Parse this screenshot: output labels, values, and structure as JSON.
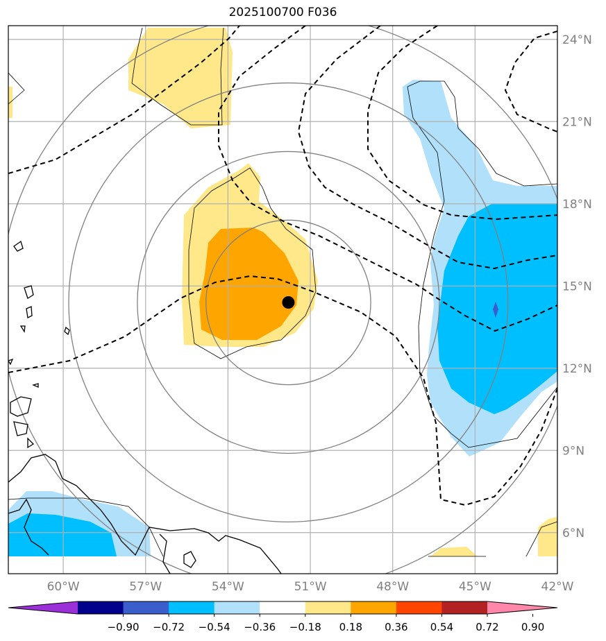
{
  "title": "2025100700 F036",
  "map": {
    "lon_range": [
      -62,
      -42
    ],
    "lat_range": [
      4.5,
      24.5
    ],
    "lon_ticks": [
      {
        "value": -60,
        "label": "60°W"
      },
      {
        "value": -57,
        "label": "57°W"
      },
      {
        "value": -54,
        "label": "54°W"
      },
      {
        "value": -51,
        "label": "51°W"
      },
      {
        "value": -48,
        "label": "48°W"
      },
      {
        "value": -45,
        "label": "45°W"
      },
      {
        "value": -42,
        "label": "42°W"
      }
    ],
    "lat_ticks": [
      {
        "value": 24,
        "label": "24°N"
      },
      {
        "value": 21,
        "label": "21°N"
      },
      {
        "value": 18,
        "label": "18°N"
      },
      {
        "value": 15,
        "label": "15°N"
      },
      {
        "value": 12,
        "label": "12°N"
      },
      {
        "value": 9,
        "label": "9°N"
      },
      {
        "value": 6,
        "label": "6°N"
      }
    ],
    "storm_center": {
      "lon": -51.8,
      "lat": 14.4
    },
    "range_rings_deg": [
      3,
      5.5,
      8,
      10.5
    ]
  },
  "colorbar": {
    "colors": [
      "#9b30d8",
      "#00008b",
      "#3a5fcd",
      "#00bfff",
      "#b0e0fa",
      "#ffffff",
      "#ffe88a",
      "#ffa500",
      "#ff4500",
      "#b22222",
      "#ff88aa"
    ],
    "labels": [
      "−0.90",
      "−0.72",
      "−0.54",
      "−0.36",
      "−0.18",
      "0.18",
      "0.36",
      "0.54",
      "0.72",
      "0.90"
    ]
  },
  "colors": {
    "light_yellow": "#ffe88a",
    "orange": "#ffa500",
    "light_blue": "#b0e0fa",
    "deep_sky_blue": "#00bfff",
    "blue": "#3a5fcd",
    "gridline": "#b0b0b0",
    "ring": "#808080",
    "tick_label": "#808080"
  }
}
